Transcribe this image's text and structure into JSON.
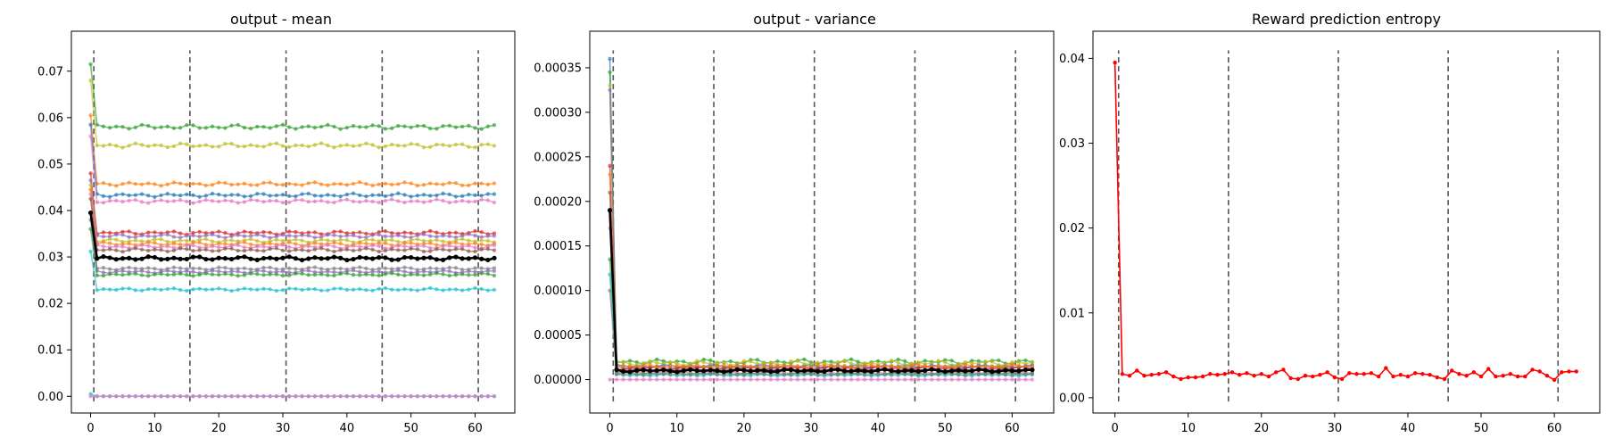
{
  "chart_data": [
    {
      "type": "line",
      "title": "output - mean",
      "xlabel": "",
      "ylabel": "",
      "xlim": [
        -3,
        66.2
      ],
      "ylim": [
        -0.0036,
        0.0786
      ],
      "xticks": [
        0,
        10,
        20,
        30,
        40,
        50,
        60
      ],
      "yticks": [
        0.0,
        0.01,
        0.02,
        0.03,
        0.04,
        0.05,
        0.06,
        0.07
      ],
      "ytick_labels": [
        "0.00",
        "0.01",
        "0.02",
        "0.03",
        "0.04",
        "0.05",
        "0.06",
        "0.07"
      ],
      "vlines": [
        0.5,
        15.5,
        30.5,
        45.5,
        60.5
      ],
      "n_points": 64,
      "series": [
        {
          "color": "#2ca02c",
          "start": 0.0715,
          "plateau": 0.058,
          "amp": 0.0005
        },
        {
          "color": "#bcbd22",
          "start": 0.068,
          "plateau": 0.054,
          "amp": 0.0005
        },
        {
          "color": "#ff7f0e",
          "start": 0.0605,
          "plateau": 0.0457,
          "amp": 0.0004
        },
        {
          "color": "#1f77b4",
          "start": 0.0585,
          "plateau": 0.0433,
          "amp": 0.0004
        },
        {
          "color": "#e377c2",
          "start": 0.056,
          "plateau": 0.042,
          "amp": 0.0004
        },
        {
          "color": "#d62728",
          "start": 0.048,
          "plateau": 0.0352,
          "amp": 0.0004
        },
        {
          "color": "#9467bd",
          "start": 0.0465,
          "plateau": 0.0345,
          "amp": 0.0004
        },
        {
          "color": "#bcbd22",
          "start": 0.0455,
          "plateau": 0.0335,
          "amp": 0.0004
        },
        {
          "color": "#ff7f0e",
          "start": 0.0445,
          "plateau": 0.0328,
          "amp": 0.0004
        },
        {
          "color": "#e377c2",
          "start": 0.0435,
          "plateau": 0.0322,
          "amp": 0.0004
        },
        {
          "color": "#8c564b",
          "start": 0.0425,
          "plateau": 0.0315,
          "amp": 0.0004
        },
        {
          "color": "#7f7f7f",
          "start": 0.0395,
          "plateau": 0.0275,
          "amp": 0.0003
        },
        {
          "color": "#9467bd",
          "start": 0.038,
          "plateau": 0.0268,
          "amp": 0.0003
        },
        {
          "color": "#2ca02c",
          "start": 0.036,
          "plateau": 0.0262,
          "amp": 0.0003
        },
        {
          "color": "#17becf",
          "start": 0.0312,
          "plateau": 0.023,
          "amp": 0.0003
        },
        {
          "color": "#17becf",
          "start": 0.0005,
          "plateau": 0.0,
          "amp": 0.0
        },
        {
          "color": "#e377c2",
          "start": 0.0,
          "plateau": 0.0,
          "amp": 0.0
        },
        {
          "color": "#000000",
          "start": 0.0395,
          "plateau": 0.0297,
          "amp": 0.0004,
          "thick": true
        }
      ]
    },
    {
      "type": "line",
      "title": "output - variance",
      "xlabel": "",
      "ylabel": "",
      "xlim": [
        -3,
        66.2
      ],
      "ylim": [
        -3.75e-05,
        0.000391
      ],
      "xticks": [
        0,
        10,
        20,
        30,
        40,
        50,
        60
      ],
      "yticks": [
        0.0,
        5e-05,
        0.0001,
        0.00015,
        0.0002,
        0.00025,
        0.0003,
        0.00035
      ],
      "ytick_labels": [
        "0.00000",
        "0.00005",
        "0.00010",
        "0.00015",
        "0.00020",
        "0.00025",
        "0.00030",
        "0.00035"
      ],
      "vlines": [
        0.5,
        15.5,
        30.5,
        45.5,
        60.5
      ],
      "n_points": 64,
      "series": [
        {
          "color": "#1f77b4",
          "start": 0.00036,
          "plateau": 1.5e-05,
          "amp": 2e-06
        },
        {
          "color": "#2ca02c",
          "start": 0.000345,
          "plateau": 2e-05,
          "amp": 3e-06
        },
        {
          "color": "#bcbd22",
          "start": 0.00033,
          "plateau": 1.85e-05,
          "amp": 3e-06
        },
        {
          "color": "#9467bd",
          "start": 0.000325,
          "plateau": 1.4e-05,
          "amp": 2e-06
        },
        {
          "color": "#d62728",
          "start": 0.00024,
          "plateau": 1.3e-05,
          "amp": 2e-06
        },
        {
          "color": "#ff7f0e",
          "start": 0.00023,
          "plateau": 1.5e-05,
          "amp": 2e-06
        },
        {
          "color": "#8c564b",
          "start": 0.00021,
          "plateau": 1.1e-05,
          "amp": 1.5e-06
        },
        {
          "color": "#e377c2",
          "start": 0.00017,
          "plateau": 8e-06,
          "amp": 1.5e-06
        },
        {
          "color": "#2ca02c",
          "start": 0.000135,
          "plateau": 7e-06,
          "amp": 1.5e-06
        },
        {
          "color": "#17becf",
          "start": 0.000118,
          "plateau": 5e-06,
          "amp": 1e-06
        },
        {
          "color": "#7f7f7f",
          "start": 0.0001,
          "plateau": 6e-06,
          "amp": 1e-06
        },
        {
          "color": "#e377c2",
          "start": 0.0,
          "plateau": 0.0,
          "amp": 0.0
        },
        {
          "color": "#000000",
          "start": 0.00019,
          "plateau": 1e-05,
          "amp": 1.5e-06,
          "thick": true
        }
      ]
    },
    {
      "type": "line",
      "title": "Reward prediction entropy",
      "xlabel": "",
      "ylabel": "",
      "xlim": [
        -3,
        66.2
      ],
      "ylim": [
        -0.0018,
        0.0432
      ],
      "xticks": [
        0,
        10,
        20,
        30,
        40,
        50,
        60
      ],
      "yticks": [
        0.0,
        0.01,
        0.02,
        0.03,
        0.04
      ],
      "ytick_labels": [
        "0.00",
        "0.01",
        "0.02",
        "0.03",
        "0.04"
      ],
      "vlines": [
        0.5,
        15.5,
        30.5,
        45.5,
        60.5
      ],
      "n_points": 64,
      "series": [
        {
          "color": "#ff0000",
          "values": [
            0.0395,
            0.0028,
            0.0026,
            0.0032,
            0.0026,
            0.0027,
            0.0028,
            0.003,
            0.0025,
            0.0022,
            0.0024,
            0.0024,
            0.0025,
            0.0028,
            0.0027,
            0.0028,
            0.003,
            0.0027,
            0.0029,
            0.0026,
            0.0028,
            0.0025,
            0.003,
            0.0033,
            0.0023,
            0.0022,
            0.0026,
            0.0025,
            0.0027,
            0.003,
            0.0024,
            0.0022,
            0.0029,
            0.0028,
            0.0028,
            0.0029,
            0.0025,
            0.0035,
            0.0025,
            0.0027,
            0.0025,
            0.0029,
            0.0028,
            0.0027,
            0.0024,
            0.0022,
            0.0032,
            0.0028,
            0.0026,
            0.003,
            0.0025,
            0.0034,
            0.0025,
            0.0026,
            0.0028,
            0.0025,
            0.0025,
            0.0033,
            0.0031,
            0.0026,
            0.0021,
            0.003,
            0.0031,
            0.0031
          ]
        }
      ]
    }
  ]
}
